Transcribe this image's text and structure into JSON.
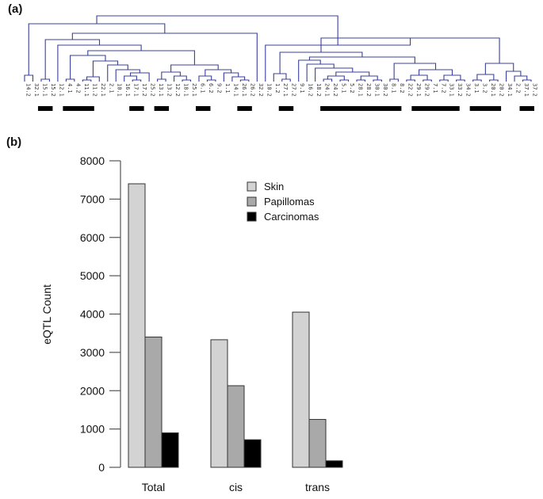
{
  "panels": {
    "a_label": "(a)",
    "b_label": "(b)"
  },
  "dendrogram": {
    "line_color": "#3b3f9a",
    "leaves": [
      "14.2",
      "32.1",
      "15.1",
      "15.2",
      "12.1",
      "4.1",
      "4.2",
      "11.1",
      "11.2",
      "22.1",
      "2.1",
      "10.1",
      "16.1",
      "17.1",
      "17.2",
      "25.2",
      "13.1",
      "13.2",
      "12.2",
      "18.1",
      "25.1",
      "6.1",
      "6.2",
      "9.2",
      "1.1",
      "14.1",
      "26.1",
      "26.2",
      "32.2",
      "10.2",
      "1.2",
      "27.1",
      "27.2",
      "9.1",
      "16.2",
      "18.2",
      "24.1",
      "24.2",
      "5.1",
      "5.2",
      "28.1",
      "28.2",
      "30.1",
      "30.2",
      "8.1",
      "8.2",
      "22.2",
      "29.1",
      "29.2",
      "7.1",
      "7.2",
      "33.1",
      "33.2",
      "34.2",
      "3.1",
      "3.2",
      "20.1",
      "20.2",
      "34.1",
      "2.2",
      "37.1",
      "37.2"
    ],
    "paired_groups": [
      [
        "15.1",
        "15.2"
      ],
      [
        "4.1",
        "4.2",
        "11.1",
        "11.2"
      ],
      [
        "17.1",
        "17.2"
      ],
      [
        "13.1",
        "13.2"
      ],
      [
        "6.1",
        "6.2"
      ],
      [
        "26.1",
        "26.2"
      ],
      [
        "27.1",
        "27.2"
      ],
      [
        "24.1",
        "24.2",
        "5.1",
        "5.2",
        "28.1",
        "28.2",
        "30.1",
        "30.2",
        "8.1",
        "8.2"
      ],
      [
        "29.1",
        "29.2",
        "7.1",
        "7.2",
        "33.1",
        "33.2"
      ],
      [
        "3.1",
        "3.2",
        "20.1",
        "20.2"
      ],
      [
        "37.1",
        "37.2"
      ]
    ]
  },
  "chart_data": {
    "type": "bar",
    "title": "",
    "xlabel": "",
    "ylabel": "eQTL Count",
    "ylim": [
      0,
      8000
    ],
    "yticks": [
      0,
      1000,
      2000,
      3000,
      4000,
      5000,
      6000,
      7000,
      8000
    ],
    "categories": [
      "Total",
      "cis",
      "trans"
    ],
    "series": [
      {
        "name": "Skin",
        "color": "#d3d3d3",
        "values": [
          7400,
          3330,
          4050
        ]
      },
      {
        "name": "Papillomas",
        "color": "#a9a9a9",
        "values": [
          3400,
          2130,
          1250
        ]
      },
      {
        "name": "Carcinomas",
        "color": "#000000",
        "values": [
          900,
          720,
          170
        ]
      }
    ],
    "legend": {
      "position": "top-center",
      "entries": [
        "Skin",
        "Papillomas",
        "Carcinomas"
      ]
    },
    "grid": false
  }
}
